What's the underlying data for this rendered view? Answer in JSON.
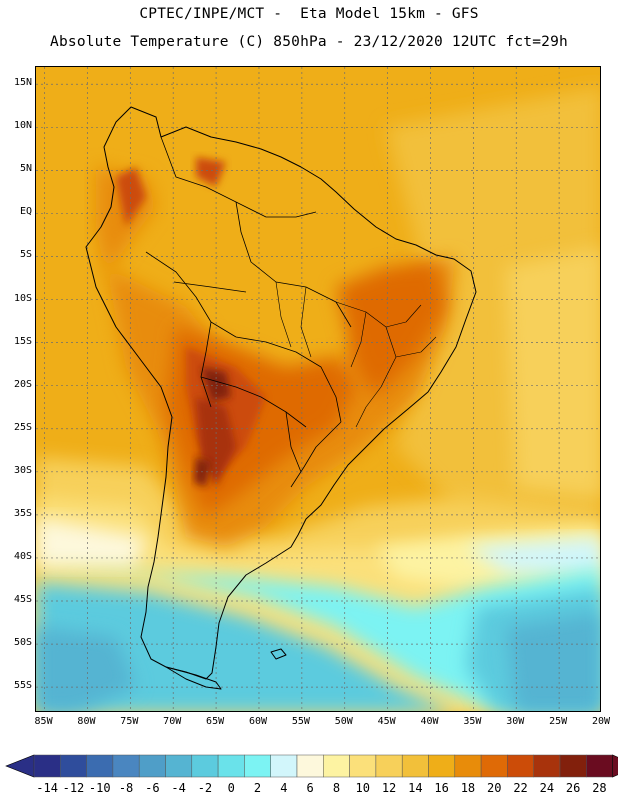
{
  "header": {
    "line1": "CPTEC/INPE/MCT -  Eta Model 15km - GFS",
    "line2": "Absolute Temperature (C) 850hPa - 23/12/2020 12UTC fct=29h"
  },
  "map": {
    "region": "South America",
    "lon_range": [
      -86,
      -20
    ],
    "lat_range": [
      -58,
      17
    ],
    "lat_labels": [
      {
        "text": "15N",
        "lat": 15
      },
      {
        "text": "10N",
        "lat": 10
      },
      {
        "text": "5N",
        "lat": 5
      },
      {
        "text": "EQ",
        "lat": 0
      },
      {
        "text": "5S",
        "lat": -5
      },
      {
        "text": "10S",
        "lat": -10
      },
      {
        "text": "15S",
        "lat": -15
      },
      {
        "text": "20S",
        "lat": -20
      },
      {
        "text": "25S",
        "lat": -25
      },
      {
        "text": "30S",
        "lat": -30
      },
      {
        "text": "35S",
        "lat": -35
      },
      {
        "text": "40S",
        "lat": -40
      },
      {
        "text": "45S",
        "lat": -45
      },
      {
        "text": "50S",
        "lat": -50
      },
      {
        "text": "55S",
        "lat": -55
      }
    ],
    "lon_labels": [
      {
        "text": "85W",
        "lon": -85
      },
      {
        "text": "80W",
        "lon": -80
      },
      {
        "text": "75W",
        "lon": -75
      },
      {
        "text": "70W",
        "lon": -70
      },
      {
        "text": "65W",
        "lon": -65
      },
      {
        "text": "60W",
        "lon": -60
      },
      {
        "text": "55W",
        "lon": -55
      },
      {
        "text": "50W",
        "lon": -50
      },
      {
        "text": "45W",
        "lon": -45
      },
      {
        "text": "40W",
        "lon": -40
      },
      {
        "text": "35W",
        "lon": -35
      },
      {
        "text": "30W",
        "lon": -30
      },
      {
        "text": "25W",
        "lon": -25
      },
      {
        "text": "20W",
        "lon": -20
      }
    ]
  },
  "colorbar": {
    "unit": "C",
    "labels": [
      "-14",
      "-12",
      "-10",
      "-8",
      "-6",
      "-4",
      "-2",
      "0",
      "2",
      "4",
      "6",
      "8",
      "10",
      "12",
      "14",
      "16",
      "18",
      "20",
      "22",
      "24",
      "26",
      "28"
    ],
    "colors": [
      "#2a2f86",
      "#2f4d9c",
      "#3b6cb0",
      "#4a86c0",
      "#4f9ec8",
      "#55b4d2",
      "#5ccbde",
      "#6ae2ea",
      "#7cf3f3",
      "#d2f6fb",
      "#fdf8dc",
      "#fdf3a2",
      "#fbe07a",
      "#f7d05a",
      "#f2c03a",
      "#efae18",
      "#e88c0a",
      "#df6a06",
      "#cc4c08",
      "#a8330c",
      "#82200c",
      "#6a0c20"
    ],
    "low_arrow_color": "#2a2f86",
    "high_arrow_color": "#6a0c20"
  }
}
